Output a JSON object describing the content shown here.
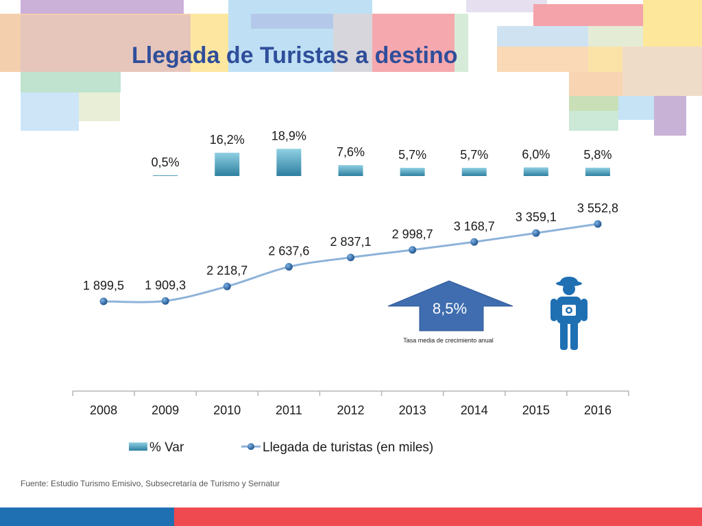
{
  "slide": {
    "title": "Llegada de Turistas a destino",
    "source": "Fuente: Estudio Turismo Emisivo, Subsecretaría de Turismo y Sernatur"
  },
  "highlight": {
    "value": "8,5%",
    "caption": "Tasa media de crecimiento anual"
  },
  "legend": {
    "bar_label": "% Var",
    "line_label": "Llegada de turistas (en miles)"
  },
  "colors": {
    "title": "#2f4e9a",
    "bar_top": "#7fc7dc",
    "bar_bottom": "#2e7fa0",
    "line": "#8eb2d9",
    "marker": "#1f5a96",
    "arrow": "#3f6db0",
    "footer_blue": "#1f6fb3",
    "footer_red": "#ef4a4f"
  },
  "chart_data": {
    "type": "bar",
    "categories": [
      "2008",
      "2009",
      "2010",
      "2011",
      "2012",
      "2013",
      "2014",
      "2015",
      "2016"
    ],
    "series": [
      {
        "name": "% Var",
        "type": "bar",
        "values": [
          null,
          0.5,
          16.2,
          18.9,
          7.6,
          5.7,
          5.7,
          6.0,
          5.8
        ],
        "labels": [
          "",
          "0,5%",
          "16,2%",
          "18,9%",
          "7,6%",
          "5,7%",
          "5,7%",
          "6,0%",
          "5,8%"
        ]
      },
      {
        "name": "Llegada de turistas (en miles)",
        "type": "line",
        "values": [
          1899.5,
          1909.3,
          2218.7,
          2637.6,
          2837.1,
          2998.7,
          3168.7,
          3359.1,
          3552.8
        ],
        "labels": [
          "1 899,5",
          "1 909,3",
          "2 218,7",
          "2 637,6",
          "2 837,1",
          "2 998,7",
          "3 168,7",
          "3 359,1",
          "3 552,8"
        ]
      }
    ],
    "title": "Llegada de Turistas a destino",
    "xlabel": "",
    "ylabel": "",
    "grid": false,
    "legend_position": "bottom"
  }
}
